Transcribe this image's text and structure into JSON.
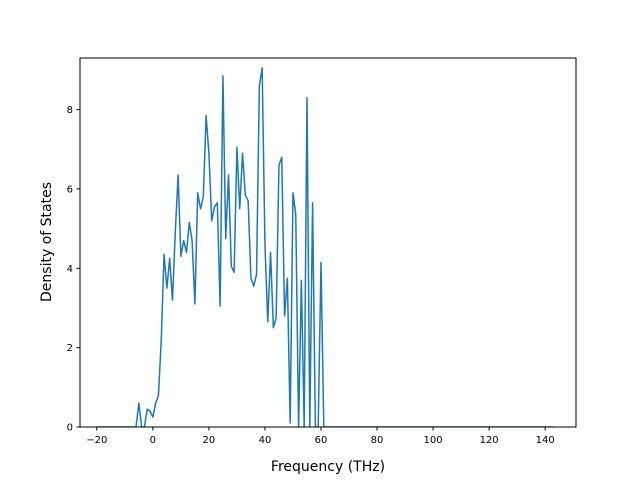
{
  "chart_data": {
    "type": "line",
    "title": "",
    "xlabel": "Frequency (THz)",
    "ylabel": "Density of States",
    "xlim": [
      -26,
      151
    ],
    "ylim": [
      0,
      9.3
    ],
    "xticks": [
      -20,
      0,
      20,
      40,
      60,
      80,
      100,
      120,
      140
    ],
    "yticks": [
      0,
      2,
      4,
      6,
      8
    ],
    "grid": false,
    "legend": "none",
    "series": [
      {
        "color": "#1f77b4",
        "x": [
          -20,
          -10,
          -6,
          -5,
          -4,
          -3,
          -2,
          -1,
          0,
          1,
          2,
          3,
          4,
          5,
          6,
          7,
          8,
          9,
          10,
          11,
          12,
          13,
          14,
          15,
          16,
          17,
          18,
          19,
          20,
          21,
          22,
          23,
          24,
          25,
          26,
          27,
          28,
          29,
          30,
          31,
          32,
          33,
          34,
          35,
          36,
          37,
          38,
          39,
          40,
          41,
          42,
          43,
          44,
          45,
          46,
          47,
          48,
          49,
          50,
          51,
          52,
          53,
          54,
          55,
          56,
          57,
          58,
          59,
          60,
          61,
          62,
          63,
          80,
          100,
          120,
          143
        ],
        "y": [
          0,
          0,
          0,
          0.6,
          0,
          0,
          0.45,
          0.4,
          0.25,
          0.6,
          0.8,
          2.2,
          4.35,
          3.5,
          4.25,
          3.2,
          4.9,
          6.35,
          4.3,
          4.7,
          4.4,
          5.15,
          4.7,
          3.1,
          5.9,
          5.5,
          5.8,
          7.85,
          6.9,
          5.2,
          5.55,
          5.65,
          3.05,
          8.85,
          4.75,
          6.35,
          4.05,
          3.9,
          7.05,
          5.5,
          6.9,
          5.85,
          5.7,
          3.75,
          3.55,
          3.85,
          8.6,
          9.05,
          4.6,
          2.65,
          4.4,
          2.5,
          2.75,
          6.6,
          6.8,
          2.8,
          3.75,
          0.1,
          5.9,
          5.35,
          0,
          3.7,
          0,
          8.3,
          0,
          5.65,
          0,
          0,
          4.15,
          0,
          0,
          0,
          0,
          0,
          0,
          0
        ]
      }
    ]
  }
}
